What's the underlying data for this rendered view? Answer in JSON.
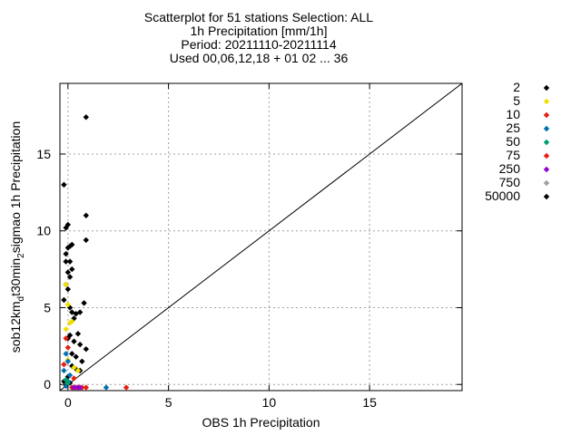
{
  "chart_data": {
    "type": "scatter",
    "title_lines": [
      "Scatterplot for   51 stations Selection: ALL",
      "1h Precipitation [mm/1h]",
      "Period: 20211110-20211114",
      "Used 00,06,12,18 + 01 02 ... 36"
    ],
    "xlabel": "OBS 1h Precipitation",
    "ylabel_parts": {
      "main": "sob12km",
      "sub1": "d",
      "mid": "t30min",
      "sub2": "2",
      "end": "sigmao 1h Precipitation"
    },
    "xlim": [
      -0.4,
      19.6
    ],
    "ylim": [
      -0.4,
      19.6
    ],
    "x_ticks": [
      0,
      5,
      10,
      15
    ],
    "y_ticks": [
      0,
      5,
      10,
      15
    ],
    "grid": true,
    "diagonal": true,
    "legend_position": "right",
    "series": [
      {
        "name": "2",
        "color": "#000000",
        "points": [
          [
            -0.2,
            13
          ],
          [
            -0.1,
            10.2
          ],
          [
            0.0,
            10.4
          ],
          [
            0.2,
            9.1
          ],
          [
            0.1,
            9.0
          ],
          [
            0.0,
            8.9
          ],
          [
            -0.1,
            8.5
          ],
          [
            -0.1,
            8.0
          ],
          [
            0.1,
            8.0
          ],
          [
            0.2,
            7.5
          ],
          [
            0.0,
            7.3
          ],
          [
            0.1,
            7.0
          ],
          [
            -0.1,
            6.5
          ],
          [
            0.0,
            6.2
          ],
          [
            -0.2,
            5.5
          ],
          [
            0.1,
            5.0
          ],
          [
            0.2,
            4.7
          ],
          [
            0.4,
            4.6
          ],
          [
            0.6,
            4.7
          ],
          [
            0.3,
            4.3
          ],
          [
            0.1,
            3.2
          ],
          [
            0.0,
            3.0
          ],
          [
            0.3,
            2.8
          ],
          [
            0.5,
            3.3
          ],
          [
            0.6,
            2.6
          ],
          [
            0.2,
            2.0
          ],
          [
            0.4,
            1.8
          ],
          [
            0.7,
            1.5
          ],
          [
            0.2,
            1.2
          ],
          [
            0.4,
            1.0
          ],
          [
            0.6,
            0.9
          ],
          [
            0.0,
            0.5
          ],
          [
            -0.2,
            0.2
          ],
          [
            0.1,
            0.1
          ],
          [
            -0.1,
            -0.1
          ],
          [
            0.9,
            17.4
          ],
          [
            0.9,
            11.0
          ],
          [
            0.9,
            9.4
          ],
          [
            0.8,
            5.3
          ],
          [
            0.9,
            2.3
          ]
        ]
      },
      {
        "name": "5",
        "color": "#f0e000",
        "points": [
          [
            -0.1,
            6.5
          ],
          [
            0.0,
            5.2
          ],
          [
            0.1,
            4.0
          ],
          [
            -0.1,
            3.6
          ],
          [
            0.2,
            4.1
          ],
          [
            0.3,
            1.1
          ],
          [
            0.5,
            0.9
          ],
          [
            0.0,
            1.6
          ]
        ]
      },
      {
        "name": "10",
        "color": "#e51e10",
        "points": [
          [
            -0.1,
            3.0
          ],
          [
            0.0,
            2.4
          ],
          [
            -0.2,
            1.3
          ],
          [
            0.3,
            0.4
          ],
          [
            0.5,
            -0.2
          ],
          [
            0.7,
            -0.2
          ],
          [
            0.9,
            -0.2
          ],
          [
            2.9,
            -0.2
          ]
        ]
      },
      {
        "name": "25",
        "color": "#0072b2",
        "points": [
          [
            -0.1,
            2.0
          ],
          [
            0.0,
            1.5
          ],
          [
            -0.2,
            0.9
          ],
          [
            0.1,
            0.6
          ],
          [
            0.0,
            0.2
          ],
          [
            -0.1,
            -0.1
          ],
          [
            0.2,
            -0.2
          ],
          [
            1.9,
            -0.2
          ]
        ]
      },
      {
        "name": "50",
        "color": "#009e73",
        "points": [
          [
            -0.1,
            0.3
          ],
          [
            0.0,
            0.1
          ]
        ]
      },
      {
        "name": "75",
        "color": "#e51e10",
        "points": [
          [
            0.2,
            -0.2
          ],
          [
            0.4,
            -0.2
          ]
        ]
      },
      {
        "name": "250",
        "color": "#9400d3",
        "points": [
          [
            0.3,
            -0.2
          ],
          [
            0.5,
            -0.2
          ],
          [
            0.6,
            -0.2
          ]
        ]
      },
      {
        "name": "750",
        "color": "#a0a0a0",
        "points": []
      },
      {
        "name": "50000",
        "color": "#000000",
        "points": []
      }
    ]
  }
}
